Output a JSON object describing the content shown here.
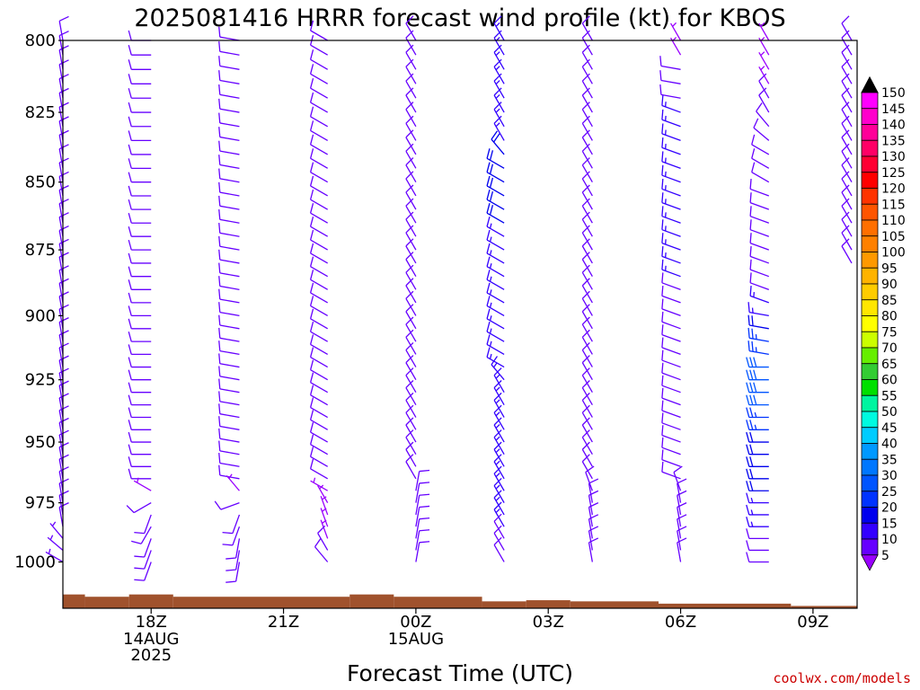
{
  "chart_data": {
    "type": "wind-profile",
    "title": "2025081416 HRRR forecast wind profile (kt) for KBOS",
    "xlabel": "Forecast Time (UTC)",
    "ylabel": "",
    "y_scale": "log-pressure",
    "ylim": [
      1020,
      800
    ],
    "y_ticks": [
      800,
      825,
      850,
      875,
      900,
      925,
      950,
      975,
      1000
    ],
    "x_ticks": [
      {
        "label": "18Z",
        "sub": [
          "14AUG",
          "2025"
        ]
      },
      {
        "label": "21Z",
        "sub": []
      },
      {
        "label": "00Z",
        "sub": [
          "15AUG"
        ]
      },
      {
        "label": "03Z",
        "sub": []
      },
      {
        "label": "06Z",
        "sub": []
      },
      {
        "label": "09Z",
        "sub": []
      }
    ],
    "x_tick_hours": [
      18,
      21,
      24,
      27,
      30,
      33
    ],
    "x_range_hours": [
      16,
      34
    ],
    "barb_columns": [
      {
        "hour": 16,
        "speeds": [
          10,
          10,
          10,
          10,
          10,
          10,
          10,
          10,
          10,
          10,
          10,
          10,
          10,
          10,
          10,
          10,
          10,
          10,
          10,
          10,
          10,
          10,
          10,
          10,
          10,
          10,
          10,
          10,
          10,
          10,
          10,
          10,
          10,
          10,
          10,
          10,
          10,
          10,
          8,
          8,
          8
        ],
        "dirs": [
          350,
          350,
          350,
          350,
          350,
          350,
          350,
          350,
          350,
          350,
          350,
          350,
          350,
          350,
          350,
          350,
          350,
          350,
          350,
          350,
          350,
          350,
          350,
          350,
          350,
          350,
          350,
          350,
          350,
          350,
          350,
          350,
          350,
          350,
          350,
          350,
          350,
          350,
          320,
          310,
          300
        ]
      },
      {
        "hour": 18,
        "speeds": [
          10,
          10,
          10,
          10,
          10,
          10,
          10,
          10,
          10,
          10,
          10,
          10,
          10,
          10,
          10,
          10,
          10,
          10,
          10,
          10,
          10,
          10,
          10,
          10,
          10,
          10,
          10,
          10,
          10,
          10,
          10,
          10,
          10,
          10,
          5,
          10,
          10,
          10,
          10,
          10,
          10
        ],
        "dirs": [
          270,
          270,
          270,
          270,
          270,
          270,
          270,
          270,
          270,
          270,
          270,
          270,
          270,
          270,
          270,
          270,
          270,
          270,
          270,
          270,
          270,
          270,
          270,
          270,
          270,
          270,
          270,
          270,
          270,
          270,
          270,
          270,
          270,
          270,
          300,
          240,
          200,
          210,
          200,
          200,
          200
        ]
      },
      {
        "hour": 20,
        "speeds": [
          10,
          10,
          10,
          10,
          10,
          10,
          10,
          10,
          10,
          10,
          10,
          10,
          10,
          10,
          10,
          10,
          10,
          10,
          10,
          10,
          10,
          10,
          10,
          10,
          10,
          10,
          10,
          10,
          10,
          10,
          10,
          10,
          10,
          10,
          5,
          10,
          10,
          10,
          10,
          10,
          10
        ],
        "dirs": [
          280,
          280,
          280,
          280,
          280,
          280,
          280,
          280,
          280,
          280,
          280,
          280,
          280,
          280,
          280,
          280,
          280,
          280,
          280,
          280,
          280,
          280,
          280,
          280,
          280,
          280,
          280,
          280,
          280,
          280,
          280,
          280,
          280,
          280,
          320,
          250,
          200,
          200,
          190,
          190,
          190
        ]
      },
      {
        "hour": 22,
        "speeds": [
          10,
          10,
          10,
          10,
          10,
          10,
          10,
          10,
          10,
          10,
          10,
          10,
          10,
          10,
          10,
          10,
          10,
          10,
          10,
          10,
          10,
          10,
          10,
          10,
          10,
          10,
          10,
          10,
          10,
          10,
          10,
          10,
          10,
          10,
          5,
          5,
          5,
          5,
          5,
          10,
          10
        ],
        "dirs": [
          300,
          300,
          300,
          300,
          300,
          300,
          300,
          300,
          300,
          300,
          300,
          300,
          300,
          300,
          300,
          300,
          300,
          300,
          300,
          300,
          300,
          300,
          300,
          300,
          300,
          300,
          300,
          300,
          300,
          300,
          300,
          300,
          300,
          300,
          300,
          330,
          340,
          340,
          340,
          330,
          320
        ]
      },
      {
        "hour": 24,
        "speeds": [
          10,
          10,
          10,
          10,
          10,
          10,
          10,
          10,
          10,
          10,
          10,
          10,
          10,
          10,
          10,
          10,
          10,
          10,
          10,
          10,
          10,
          10,
          10,
          10,
          10,
          10,
          10,
          10,
          10,
          10,
          10,
          10,
          10,
          10,
          10,
          10,
          10,
          10,
          10,
          10,
          10
        ],
        "dirs": [
          330,
          330,
          330,
          330,
          330,
          330,
          330,
          330,
          330,
          330,
          330,
          330,
          330,
          330,
          330,
          330,
          330,
          330,
          330,
          330,
          330,
          330,
          330,
          330,
          330,
          330,
          330,
          330,
          330,
          330,
          330,
          330,
          330,
          330,
          10,
          10,
          10,
          10,
          10,
          10,
          10
        ]
      },
      {
        "hour": 26,
        "speeds": [
          15,
          15,
          15,
          15,
          15,
          15,
          15,
          15,
          20,
          20,
          20,
          20,
          20,
          20,
          15,
          15,
          15,
          15,
          15,
          15,
          15,
          15,
          15,
          15,
          15,
          15,
          15,
          15,
          15,
          15,
          15,
          15,
          15,
          15,
          15,
          15,
          15,
          15,
          10,
          10,
          10
        ],
        "dirs": [
          330,
          330,
          330,
          330,
          330,
          330,
          330,
          330,
          320,
          300,
          300,
          300,
          300,
          300,
          300,
          300,
          300,
          300,
          300,
          300,
          300,
          300,
          300,
          300,
          300,
          320,
          330,
          330,
          330,
          330,
          330,
          330,
          330,
          330,
          330,
          330,
          330,
          330,
          330,
          330,
          330
        ]
      },
      {
        "hour": 28,
        "speeds": [
          10,
          10,
          10,
          10,
          10,
          10,
          10,
          10,
          10,
          10,
          10,
          10,
          10,
          10,
          10,
          10,
          10,
          10,
          10,
          10,
          10,
          10,
          10,
          10,
          10,
          10,
          10,
          10,
          10,
          10,
          10,
          10,
          10,
          10,
          10,
          10,
          10,
          10,
          10,
          10,
          10
        ],
        "dirs": [
          330,
          330,
          330,
          330,
          330,
          330,
          330,
          330,
          330,
          330,
          330,
          330,
          330,
          330,
          330,
          330,
          330,
          330,
          330,
          330,
          330,
          330,
          330,
          330,
          330,
          330,
          330,
          330,
          330,
          330,
          330,
          330,
          330,
          330,
          340,
          350,
          350,
          350,
          350,
          350,
          350
        ]
      },
      {
        "hour": 30,
        "speeds": [
          5,
          5,
          10,
          10,
          10,
          15,
          15,
          15,
          15,
          15,
          15,
          15,
          15,
          15,
          15,
          15,
          15,
          15,
          10,
          10,
          10,
          10,
          10,
          10,
          10,
          10,
          10,
          10,
          10,
          10,
          10,
          10,
          10,
          10,
          10,
          10,
          10,
          10,
          10,
          10,
          10
        ],
        "dirs": [
          330,
          330,
          280,
          280,
          280,
          290,
          290,
          290,
          290,
          290,
          290,
          290,
          290,
          290,
          290,
          290,
          290,
          290,
          290,
          290,
          290,
          290,
          290,
          290,
          290,
          290,
          290,
          290,
          290,
          290,
          290,
          290,
          290,
          290,
          340,
          350,
          350,
          350,
          350,
          350,
          350
        ]
      },
      {
        "hour": 32,
        "speeds": [
          5,
          5,
          5,
          5,
          10,
          10,
          10,
          10,
          10,
          10,
          10,
          10,
          10,
          10,
          10,
          10,
          10,
          10,
          10,
          15,
          15,
          20,
          25,
          25,
          30,
          30,
          30,
          30,
          25,
          25,
          20,
          20,
          20,
          20,
          20,
          15,
          15,
          15,
          10,
          10,
          10
        ],
        "dirs": [
          330,
          330,
          330,
          330,
          330,
          330,
          320,
          310,
          300,
          300,
          300,
          290,
          290,
          290,
          290,
          290,
          290,
          290,
          290,
          290,
          280,
          280,
          280,
          280,
          270,
          270,
          270,
          270,
          270,
          270,
          270,
          270,
          270,
          270,
          270,
          270,
          270,
          270,
          270,
          270,
          270
        ]
      },
      {
        "hour": 34,
        "speeds": [
          10,
          10,
          10,
          10,
          10,
          10,
          10,
          10,
          10,
          10,
          10,
          10,
          10,
          10,
          10,
          10,
          10
        ],
        "dirs": [
          330,
          330,
          330,
          330,
          330,
          330,
          330,
          330,
          330,
          330,
          330,
          330,
          330,
          330,
          330,
          330,
          330
        ]
      }
    ],
    "terrain_pressure": [
      {
        "from": 16,
        "to": 16.5,
        "p": 1014
      },
      {
        "from": 16.5,
        "to": 17.5,
        "p": 1015
      },
      {
        "from": 17.5,
        "to": 18.5,
        "p": 1014
      },
      {
        "from": 18.5,
        "to": 22.5,
        "p": 1015
      },
      {
        "from": 22.5,
        "to": 23.5,
        "p": 1014
      },
      {
        "from": 23.5,
        "to": 25.5,
        "p": 1015
      },
      {
        "from": 25.5,
        "to": 26.5,
        "p": 1017
      },
      {
        "from": 26.5,
        "to": 27.5,
        "p": 1016.5
      },
      {
        "from": 27.5,
        "to": 29.5,
        "p": 1017
      },
      {
        "from": 29.5,
        "to": 32.5,
        "p": 1018
      },
      {
        "from": 32.5,
        "to": 34,
        "p": 1019
      }
    ],
    "terrain_color": "#a0522d",
    "colorbar": {
      "labels": [
        "150",
        "145",
        "140",
        "135",
        "130",
        "125",
        "120",
        "115",
        "110",
        "105",
        "100",
        "95",
        "90",
        "85",
        "80",
        "75",
        "70",
        "65",
        "60",
        "55",
        "50",
        "45",
        "40",
        "35",
        "30",
        "25",
        "20",
        "15",
        "10",
        "5"
      ],
      "colors": [
        "#ff00ff",
        "#ff00cc",
        "#ff0099",
        "#ff0066",
        "#ff0033",
        "#ff0000",
        "#ff3300",
        "#ff5500",
        "#ff6f00",
        "#ff8000",
        "#ff9900",
        "#ffb300",
        "#ffcc00",
        "#ffe600",
        "#ffff00",
        "#ccff00",
        "#66ee00",
        "#33cc33",
        "#00e000",
        "#00f5a0",
        "#00fbe0",
        "#00ccff",
        "#0099ff",
        "#0077ff",
        "#0055ff",
        "#0033ff",
        "#0000ee",
        "#3300ff",
        "#6600ff",
        "#9900ff"
      ]
    },
    "speed_colors": {
      "5": "#9900ff",
      "10": "#6600ff",
      "15": "#3300ff",
      "20": "#0000ee",
      "25": "#0033ff",
      "30": "#0055ff"
    }
  },
  "credit": "coolwx.com/models"
}
